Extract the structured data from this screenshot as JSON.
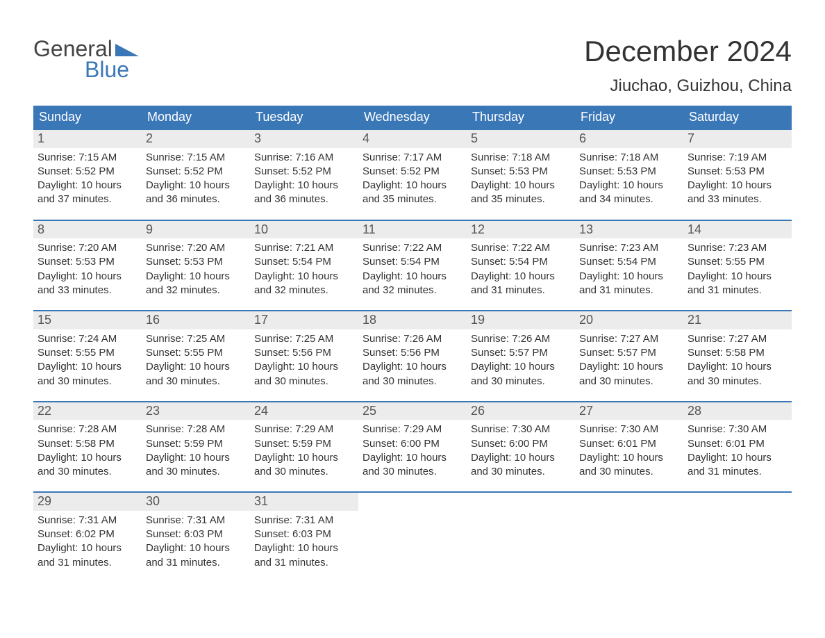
{
  "brand": {
    "name_top": "General",
    "name_bottom": "Blue",
    "accent_color": "#3a77b7",
    "text_color": "#444444"
  },
  "header": {
    "month_title": "December 2024",
    "location": "Jiuchao, Guizhou, China"
  },
  "calendar": {
    "header_bg": "#3a77b7",
    "header_text_color": "#ffffff",
    "row_border_color": "#3a77b7",
    "daynum_bg": "#ececec",
    "weekdays": [
      "Sunday",
      "Monday",
      "Tuesday",
      "Wednesday",
      "Thursday",
      "Friday",
      "Saturday"
    ],
    "weeks": [
      [
        {
          "day": "1",
          "sunrise": "Sunrise: 7:15 AM",
          "sunset": "Sunset: 5:52 PM",
          "daylight1": "Daylight: 10 hours",
          "daylight2": "and 37 minutes."
        },
        {
          "day": "2",
          "sunrise": "Sunrise: 7:15 AM",
          "sunset": "Sunset: 5:52 PM",
          "daylight1": "Daylight: 10 hours",
          "daylight2": "and 36 minutes."
        },
        {
          "day": "3",
          "sunrise": "Sunrise: 7:16 AM",
          "sunset": "Sunset: 5:52 PM",
          "daylight1": "Daylight: 10 hours",
          "daylight2": "and 36 minutes."
        },
        {
          "day": "4",
          "sunrise": "Sunrise: 7:17 AM",
          "sunset": "Sunset: 5:52 PM",
          "daylight1": "Daylight: 10 hours",
          "daylight2": "and 35 minutes."
        },
        {
          "day": "5",
          "sunrise": "Sunrise: 7:18 AM",
          "sunset": "Sunset: 5:53 PM",
          "daylight1": "Daylight: 10 hours",
          "daylight2": "and 35 minutes."
        },
        {
          "day": "6",
          "sunrise": "Sunrise: 7:18 AM",
          "sunset": "Sunset: 5:53 PM",
          "daylight1": "Daylight: 10 hours",
          "daylight2": "and 34 minutes."
        },
        {
          "day": "7",
          "sunrise": "Sunrise: 7:19 AM",
          "sunset": "Sunset: 5:53 PM",
          "daylight1": "Daylight: 10 hours",
          "daylight2": "and 33 minutes."
        }
      ],
      [
        {
          "day": "8",
          "sunrise": "Sunrise: 7:20 AM",
          "sunset": "Sunset: 5:53 PM",
          "daylight1": "Daylight: 10 hours",
          "daylight2": "and 33 minutes."
        },
        {
          "day": "9",
          "sunrise": "Sunrise: 7:20 AM",
          "sunset": "Sunset: 5:53 PM",
          "daylight1": "Daylight: 10 hours",
          "daylight2": "and 32 minutes."
        },
        {
          "day": "10",
          "sunrise": "Sunrise: 7:21 AM",
          "sunset": "Sunset: 5:54 PM",
          "daylight1": "Daylight: 10 hours",
          "daylight2": "and 32 minutes."
        },
        {
          "day": "11",
          "sunrise": "Sunrise: 7:22 AM",
          "sunset": "Sunset: 5:54 PM",
          "daylight1": "Daylight: 10 hours",
          "daylight2": "and 32 minutes."
        },
        {
          "day": "12",
          "sunrise": "Sunrise: 7:22 AM",
          "sunset": "Sunset: 5:54 PM",
          "daylight1": "Daylight: 10 hours",
          "daylight2": "and 31 minutes."
        },
        {
          "day": "13",
          "sunrise": "Sunrise: 7:23 AM",
          "sunset": "Sunset: 5:54 PM",
          "daylight1": "Daylight: 10 hours",
          "daylight2": "and 31 minutes."
        },
        {
          "day": "14",
          "sunrise": "Sunrise: 7:23 AM",
          "sunset": "Sunset: 5:55 PM",
          "daylight1": "Daylight: 10 hours",
          "daylight2": "and 31 minutes."
        }
      ],
      [
        {
          "day": "15",
          "sunrise": "Sunrise: 7:24 AM",
          "sunset": "Sunset: 5:55 PM",
          "daylight1": "Daylight: 10 hours",
          "daylight2": "and 30 minutes."
        },
        {
          "day": "16",
          "sunrise": "Sunrise: 7:25 AM",
          "sunset": "Sunset: 5:55 PM",
          "daylight1": "Daylight: 10 hours",
          "daylight2": "and 30 minutes."
        },
        {
          "day": "17",
          "sunrise": "Sunrise: 7:25 AM",
          "sunset": "Sunset: 5:56 PM",
          "daylight1": "Daylight: 10 hours",
          "daylight2": "and 30 minutes."
        },
        {
          "day": "18",
          "sunrise": "Sunrise: 7:26 AM",
          "sunset": "Sunset: 5:56 PM",
          "daylight1": "Daylight: 10 hours",
          "daylight2": "and 30 minutes."
        },
        {
          "day": "19",
          "sunrise": "Sunrise: 7:26 AM",
          "sunset": "Sunset: 5:57 PM",
          "daylight1": "Daylight: 10 hours",
          "daylight2": "and 30 minutes."
        },
        {
          "day": "20",
          "sunrise": "Sunrise: 7:27 AM",
          "sunset": "Sunset: 5:57 PM",
          "daylight1": "Daylight: 10 hours",
          "daylight2": "and 30 minutes."
        },
        {
          "day": "21",
          "sunrise": "Sunrise: 7:27 AM",
          "sunset": "Sunset: 5:58 PM",
          "daylight1": "Daylight: 10 hours",
          "daylight2": "and 30 minutes."
        }
      ],
      [
        {
          "day": "22",
          "sunrise": "Sunrise: 7:28 AM",
          "sunset": "Sunset: 5:58 PM",
          "daylight1": "Daylight: 10 hours",
          "daylight2": "and 30 minutes."
        },
        {
          "day": "23",
          "sunrise": "Sunrise: 7:28 AM",
          "sunset": "Sunset: 5:59 PM",
          "daylight1": "Daylight: 10 hours",
          "daylight2": "and 30 minutes."
        },
        {
          "day": "24",
          "sunrise": "Sunrise: 7:29 AM",
          "sunset": "Sunset: 5:59 PM",
          "daylight1": "Daylight: 10 hours",
          "daylight2": "and 30 minutes."
        },
        {
          "day": "25",
          "sunrise": "Sunrise: 7:29 AM",
          "sunset": "Sunset: 6:00 PM",
          "daylight1": "Daylight: 10 hours",
          "daylight2": "and 30 minutes."
        },
        {
          "day": "26",
          "sunrise": "Sunrise: 7:30 AM",
          "sunset": "Sunset: 6:00 PM",
          "daylight1": "Daylight: 10 hours",
          "daylight2": "and 30 minutes."
        },
        {
          "day": "27",
          "sunrise": "Sunrise: 7:30 AM",
          "sunset": "Sunset: 6:01 PM",
          "daylight1": "Daylight: 10 hours",
          "daylight2": "and 30 minutes."
        },
        {
          "day": "28",
          "sunrise": "Sunrise: 7:30 AM",
          "sunset": "Sunset: 6:01 PM",
          "daylight1": "Daylight: 10 hours",
          "daylight2": "and 31 minutes."
        }
      ],
      [
        {
          "day": "29",
          "sunrise": "Sunrise: 7:31 AM",
          "sunset": "Sunset: 6:02 PM",
          "daylight1": "Daylight: 10 hours",
          "daylight2": "and 31 minutes."
        },
        {
          "day": "30",
          "sunrise": "Sunrise: 7:31 AM",
          "sunset": "Sunset: 6:03 PM",
          "daylight1": "Daylight: 10 hours",
          "daylight2": "and 31 minutes."
        },
        {
          "day": "31",
          "sunrise": "Sunrise: 7:31 AM",
          "sunset": "Sunset: 6:03 PM",
          "daylight1": "Daylight: 10 hours",
          "daylight2": "and 31 minutes."
        },
        {
          "empty": true
        },
        {
          "empty": true
        },
        {
          "empty": true
        },
        {
          "empty": true
        }
      ]
    ]
  }
}
